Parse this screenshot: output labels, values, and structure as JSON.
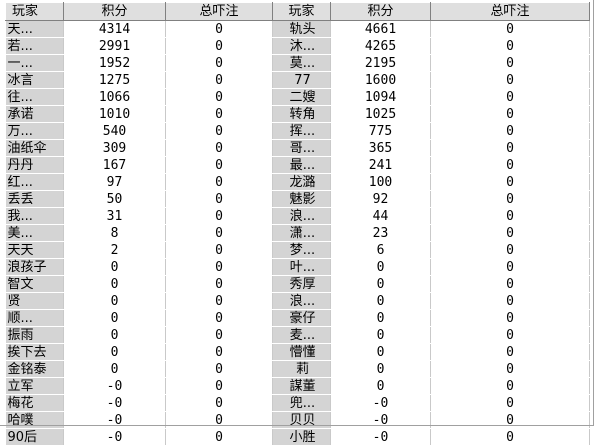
{
  "headers": {
    "player": "玩家",
    "score": "积分",
    "bet": "总吓注",
    "player2": "玩家",
    "score2": "积分",
    "bet2": "总吓注"
  },
  "left_rows": [
    {
      "name": "天...",
      "score": "4314",
      "bet": "0"
    },
    {
      "name": "若...",
      "score": "2991",
      "bet": "0"
    },
    {
      "name": "一...",
      "score": "1952",
      "bet": "0"
    },
    {
      "name": "冰言",
      "score": "1275",
      "bet": "0"
    },
    {
      "name": "往...",
      "score": "1066",
      "bet": "0"
    },
    {
      "name": "承诺",
      "score": "1010",
      "bet": "0"
    },
    {
      "name": "万...",
      "score": "540",
      "bet": "0"
    },
    {
      "name": "油纸伞",
      "score": "309",
      "bet": "0"
    },
    {
      "name": "丹丹",
      "score": "167",
      "bet": "0"
    },
    {
      "name": "红...",
      "score": "97",
      "bet": "0"
    },
    {
      "name": "丢丢",
      "score": "50",
      "bet": "0"
    },
    {
      "name": "我...",
      "score": "31",
      "bet": "0"
    },
    {
      "name": "美...",
      "score": "8",
      "bet": "0"
    },
    {
      "name": "天天",
      "score": "2",
      "bet": "0"
    },
    {
      "name": "浪孩子",
      "score": "0",
      "bet": "0"
    },
    {
      "name": "智文",
      "score": "0",
      "bet": "0"
    },
    {
      "name": "贤",
      "score": "0",
      "bet": "0"
    },
    {
      "name": "顺...",
      "score": "0",
      "bet": "0"
    },
    {
      "name": "振雨",
      "score": "0",
      "bet": "0"
    },
    {
      "name": "挨下去",
      "score": "0",
      "bet": "0"
    },
    {
      "name": "金铭泰",
      "score": "0",
      "bet": "0"
    },
    {
      "name": "立军",
      "score": "-0",
      "bet": "0"
    },
    {
      "name": "梅花",
      "score": "-0",
      "bet": "0"
    },
    {
      "name": "哈噗",
      "score": "-0",
      "bet": "0"
    },
    {
      "name": "90后",
      "score": "-0",
      "bet": "0"
    }
  ],
  "right_rows": [
    {
      "name": "轨头",
      "score": "4661",
      "bet": "0"
    },
    {
      "name": "沐...",
      "score": "4265",
      "bet": "0"
    },
    {
      "name": "莫...",
      "score": "2195",
      "bet": "0"
    },
    {
      "name": "77",
      "score": "1600",
      "bet": "0"
    },
    {
      "name": "二嫂",
      "score": "1094",
      "bet": "0"
    },
    {
      "name": "转角",
      "score": "1025",
      "bet": "0"
    },
    {
      "name": "挥...",
      "score": "775",
      "bet": "0"
    },
    {
      "name": "哥...",
      "score": "365",
      "bet": "0"
    },
    {
      "name": "最...",
      "score": "241",
      "bet": "0"
    },
    {
      "name": "龙潞",
      "score": "100",
      "bet": "0"
    },
    {
      "name": "魅影",
      "score": "92",
      "bet": "0"
    },
    {
      "name": "浪...",
      "score": "44",
      "bet": "0"
    },
    {
      "name": "潇...",
      "score": "23",
      "bet": "0"
    },
    {
      "name": "梦...",
      "score": "6",
      "bet": "0"
    },
    {
      "name": "叶...",
      "score": "0",
      "bet": "0"
    },
    {
      "name": "秀厚",
      "score": "0",
      "bet": "0"
    },
    {
      "name": "浪...",
      "score": "0",
      "bet": "0"
    },
    {
      "name": "豪仔",
      "score": "0",
      "bet": "0"
    },
    {
      "name": "麦...",
      "score": "0",
      "bet": "0"
    },
    {
      "name": "懵懂",
      "score": "0",
      "bet": "0"
    },
    {
      "name": "莉",
      "score": "0",
      "bet": "0"
    },
    {
      "name": "謀董",
      "score": "0",
      "bet": "0"
    },
    {
      "name": "兜...",
      "score": "-0",
      "bet": "0"
    },
    {
      "name": "贝贝",
      "score": "-0",
      "bet": "0"
    },
    {
      "name": "小胜",
      "score": "-0",
      "bet": "0"
    }
  ]
}
